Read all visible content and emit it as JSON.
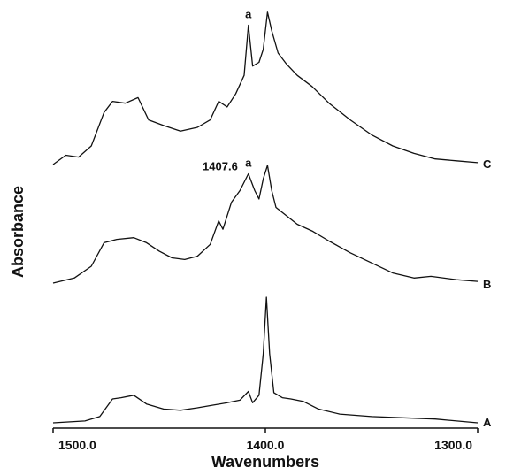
{
  "chart_data": {
    "type": "line",
    "title": "",
    "xlabel": "Wavenumbers",
    "ylabel": "Absorbance",
    "xlim": [
      1500.0,
      1300.0
    ],
    "x_reversed": true,
    "x_ticks": [
      {
        "value": 1500,
        "label": "1500.0"
      },
      {
        "value": 1400,
        "label": "1400.0"
      },
      {
        "value": 1300,
        "label": "1300.0"
      }
    ],
    "grid": false,
    "legend": "none",
    "series": [
      {
        "name": "A",
        "points": [
          [
            1500,
            0.0
          ],
          [
            1485,
            0.015
          ],
          [
            1478,
            0.05
          ],
          [
            1472,
            0.19
          ],
          [
            1468,
            0.2
          ],
          [
            1462,
            0.22
          ],
          [
            1456,
            0.15
          ],
          [
            1448,
            0.11
          ],
          [
            1440,
            0.1
          ],
          [
            1432,
            0.12
          ],
          [
            1425,
            0.14
          ],
          [
            1418,
            0.16
          ],
          [
            1412,
            0.18
          ],
          [
            1408,
            0.25
          ],
          [
            1406,
            0.16
          ],
          [
            1403,
            0.22
          ],
          [
            1401,
            0.55
          ],
          [
            1399.5,
            1.0
          ],
          [
            1398,
            0.55
          ],
          [
            1396,
            0.24
          ],
          [
            1392,
            0.2
          ],
          [
            1388,
            0.19
          ],
          [
            1382,
            0.17
          ],
          [
            1375,
            0.11
          ],
          [
            1365,
            0.07
          ],
          [
            1350,
            0.05
          ],
          [
            1335,
            0.04
          ],
          [
            1320,
            0.03
          ],
          [
            1300,
            0.0
          ]
        ]
      },
      {
        "name": "B",
        "points": [
          [
            1500,
            0.0
          ],
          [
            1490,
            0.03
          ],
          [
            1482,
            0.1
          ],
          [
            1476,
            0.24
          ],
          [
            1470,
            0.26
          ],
          [
            1462,
            0.27
          ],
          [
            1456,
            0.24
          ],
          [
            1450,
            0.19
          ],
          [
            1444,
            0.15
          ],
          [
            1438,
            0.14
          ],
          [
            1432,
            0.16
          ],
          [
            1426,
            0.23
          ],
          [
            1422,
            0.37
          ],
          [
            1420,
            0.32
          ],
          [
            1416,
            0.48
          ],
          [
            1412,
            0.55
          ],
          [
            1408,
            0.65
          ],
          [
            1405,
            0.55
          ],
          [
            1403,
            0.5
          ],
          [
            1401,
            0.62
          ],
          [
            1399,
            0.7
          ],
          [
            1397,
            0.55
          ],
          [
            1395,
            0.45
          ],
          [
            1390,
            0.4
          ],
          [
            1385,
            0.35
          ],
          [
            1378,
            0.31
          ],
          [
            1370,
            0.25
          ],
          [
            1360,
            0.18
          ],
          [
            1350,
            0.12
          ],
          [
            1340,
            0.06
          ],
          [
            1330,
            0.03
          ],
          [
            1322,
            0.04
          ],
          [
            1310,
            0.02
          ],
          [
            1300,
            0.01
          ]
        ]
      },
      {
        "name": "C",
        "points": [
          [
            1500,
            0.0
          ],
          [
            1494,
            0.05
          ],
          [
            1488,
            0.04
          ],
          [
            1482,
            0.1
          ],
          [
            1476,
            0.28
          ],
          [
            1472,
            0.34
          ],
          [
            1466,
            0.33
          ],
          [
            1460,
            0.36
          ],
          [
            1455,
            0.24
          ],
          [
            1448,
            0.21
          ],
          [
            1440,
            0.18
          ],
          [
            1432,
            0.2
          ],
          [
            1426,
            0.24
          ],
          [
            1422,
            0.34
          ],
          [
            1418,
            0.31
          ],
          [
            1414,
            0.38
          ],
          [
            1410,
            0.48
          ],
          [
            1408,
            0.75
          ],
          [
            1406,
            0.53
          ],
          [
            1403,
            0.55
          ],
          [
            1401,
            0.62
          ],
          [
            1399,
            0.82
          ],
          [
            1397,
            0.72
          ],
          [
            1394,
            0.6
          ],
          [
            1390,
            0.54
          ],
          [
            1385,
            0.48
          ],
          [
            1378,
            0.42
          ],
          [
            1370,
            0.33
          ],
          [
            1360,
            0.24
          ],
          [
            1350,
            0.16
          ],
          [
            1340,
            0.1
          ],
          [
            1330,
            0.06
          ],
          [
            1320,
            0.03
          ],
          [
            1310,
            0.02
          ],
          [
            1300,
            0.01
          ]
        ]
      }
    ],
    "annotations": [
      {
        "text": "a",
        "series": "C",
        "x": 1408
      },
      {
        "text": "a",
        "series": "B",
        "x": 1408
      },
      {
        "text": "1407.6",
        "series": "B",
        "x": 1408
      }
    ]
  }
}
